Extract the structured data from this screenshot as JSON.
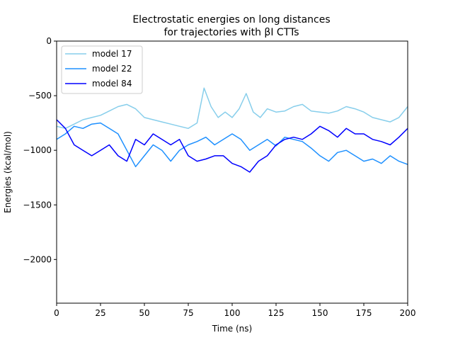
{
  "chart_data": {
    "type": "line",
    "title": [
      "Electrostatic energies on long distances",
      "for trajectories with βI CTTs"
    ],
    "xlabel": "Time (ns)",
    "ylabel": "Energies (kcal/mol)",
    "xlim": [
      0,
      200
    ],
    "ylim": [
      -2400,
      0
    ],
    "xticks": [
      0,
      25,
      50,
      75,
      100,
      125,
      150,
      175,
      200
    ],
    "yticks": [
      0,
      -500,
      -1000,
      -1500,
      -2000
    ],
    "xtick_labels": [
      "0",
      "25",
      "50",
      "75",
      "100",
      "125",
      "150",
      "175",
      "200"
    ],
    "ytick_labels": [
      "0",
      "−500",
      "−1000",
      "−1500",
      "−2000"
    ],
    "grid": false,
    "legend_position": "top-left",
    "series": [
      {
        "name": "model 17",
        "color": "#87ceeb",
        "x": [
          0,
          5,
          10,
          15,
          20,
          25,
          30,
          35,
          40,
          45,
          50,
          55,
          60,
          65,
          70,
          75,
          80,
          84,
          88,
          92,
          96,
          100,
          104,
          108,
          112,
          116,
          120,
          125,
          130,
          135,
          140,
          145,
          150,
          155,
          160,
          165,
          170,
          175,
          180,
          185,
          190,
          195,
          200
        ],
        "y": [
          -780,
          -800,
          -760,
          -720,
          -700,
          -680,
          -640,
          -600,
          -580,
          -620,
          -700,
          -720,
          -740,
          -760,
          -780,
          -800,
          -750,
          -430,
          -600,
          -700,
          -650,
          -700,
          -620,
          -480,
          -650,
          -700,
          -620,
          -650,
          -640,
          -600,
          -580,
          -640,
          -650,
          -660,
          -640,
          -600,
          -620,
          -650,
          -700,
          -720,
          -740,
          -700,
          -600
        ]
      },
      {
        "name": "model 22",
        "color": "#1e90ff",
        "x": [
          0,
          5,
          10,
          15,
          20,
          25,
          30,
          35,
          40,
          45,
          50,
          55,
          60,
          65,
          70,
          75,
          80,
          85,
          90,
          95,
          100,
          105,
          110,
          115,
          120,
          125,
          130,
          135,
          140,
          145,
          150,
          155,
          160,
          165,
          170,
          175,
          180,
          185,
          190,
          195,
          200
        ],
        "y": [
          -900,
          -850,
          -780,
          -800,
          -760,
          -750,
          -800,
          -850,
          -1000,
          -1150,
          -1050,
          -950,
          -1000,
          -1100,
          -1000,
          -950,
          -920,
          -880,
          -950,
          -900,
          -850,
          -900,
          -1000,
          -950,
          -900,
          -960,
          -880,
          -900,
          -920,
          -980,
          -1050,
          -1100,
          -1020,
          -1000,
          -1050,
          -1100,
          -1080,
          -1120,
          -1050,
          -1100,
          -1130
        ]
      },
      {
        "name": "model 84",
        "color": "#0000ff",
        "x": [
          0,
          5,
          10,
          15,
          20,
          25,
          30,
          35,
          40,
          45,
          50,
          55,
          60,
          65,
          70,
          75,
          80,
          85,
          90,
          95,
          100,
          105,
          110,
          115,
          120,
          125,
          130,
          135,
          140,
          145,
          150,
          155,
          160,
          165,
          170,
          175,
          180,
          185,
          190,
          195,
          200
        ],
        "y": [
          -720,
          -800,
          -950,
          -1000,
          -1050,
          -1000,
          -950,
          -1050,
          -1100,
          -900,
          -950,
          -850,
          -900,
          -950,
          -900,
          -1050,
          -1100,
          -1080,
          -1050,
          -1050,
          -1120,
          -1150,
          -1200,
          -1100,
          -1050,
          -950,
          -900,
          -880,
          -900,
          -850,
          -780,
          -820,
          -880,
          -800,
          -850,
          -850,
          -900,
          -920,
          -950,
          -880,
          -800
        ]
      }
    ]
  }
}
